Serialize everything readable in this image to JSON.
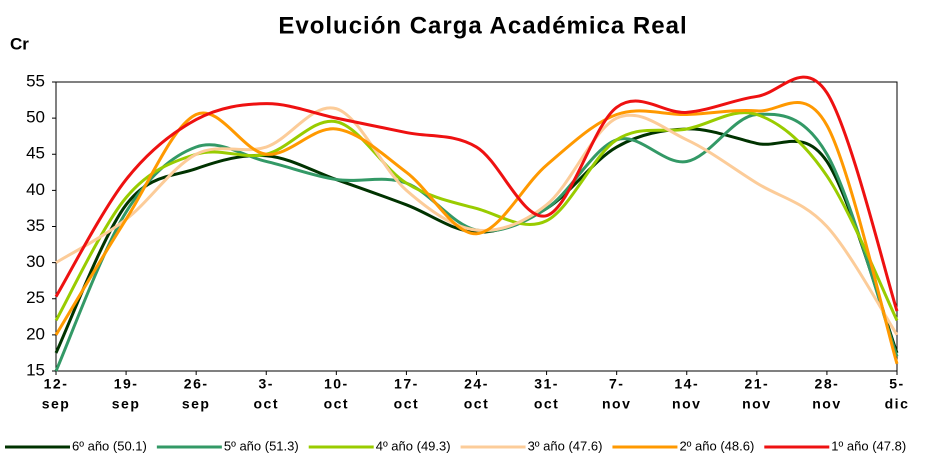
{
  "chart_data": {
    "type": "line",
    "title": "Evolución Carga Académica Real",
    "y_label": "Cr",
    "categories": [
      [
        "12-",
        "sep"
      ],
      [
        "19-",
        "sep"
      ],
      [
        "26-",
        "sep"
      ],
      [
        "3-",
        "oct"
      ],
      [
        "10-",
        "oct"
      ],
      [
        "17-",
        "oct"
      ],
      [
        "24-",
        "oct"
      ],
      [
        "31-",
        "oct"
      ],
      [
        "7-",
        "nov"
      ],
      [
        "14-",
        "nov"
      ],
      [
        "21-",
        "nov"
      ],
      [
        "28-",
        "nov"
      ],
      [
        "5-",
        "dic"
      ]
    ],
    "ylim": [
      15,
      55
    ],
    "yticks": [
      15,
      20,
      25,
      30,
      35,
      40,
      45,
      50,
      55
    ],
    "grid": false,
    "legend": "bottom",
    "smooth": true,
    "series": [
      {
        "name": "6º año (50.1)",
        "color": "#003300",
        "values": [
          17.5,
          38,
          43,
          44.8,
          41.5,
          38,
          34.2,
          37.5,
          46,
          48.5,
          46.5,
          44,
          17.5
        ]
      },
      {
        "name": "5º año (51.3)",
        "color": "#339966",
        "values": [
          15,
          37,
          46,
          44,
          41.5,
          41,
          34.5,
          37.5,
          47,
          44,
          50.5,
          45,
          17
        ]
      },
      {
        "name": "4º año (49.3)",
        "color": "#99cc00",
        "values": [
          22,
          39,
          45,
          45,
          49.5,
          41,
          37.5,
          35.8,
          47,
          48.5,
          50.5,
          42,
          22
        ]
      },
      {
        "name": "3º año (47.6)",
        "color": "#fccc99",
        "values": [
          30,
          36,
          45,
          46,
          51.3,
          40,
          34.5,
          38,
          50,
          47,
          41,
          35,
          20
        ]
      },
      {
        "name": "2º año (48.6)",
        "color": "#ff9900",
        "values": [
          20,
          36,
          50.5,
          45,
          48.5,
          42.5,
          34,
          43.5,
          50.5,
          50.5,
          51,
          49,
          16
        ]
      },
      {
        "name": "1º año (47.8)",
        "color": "#ee1111",
        "values": [
          25.3,
          41.5,
          49.8,
          52,
          50,
          48,
          46,
          36.5,
          51.5,
          50.8,
          53,
          53.5,
          23.3
        ]
      }
    ]
  }
}
